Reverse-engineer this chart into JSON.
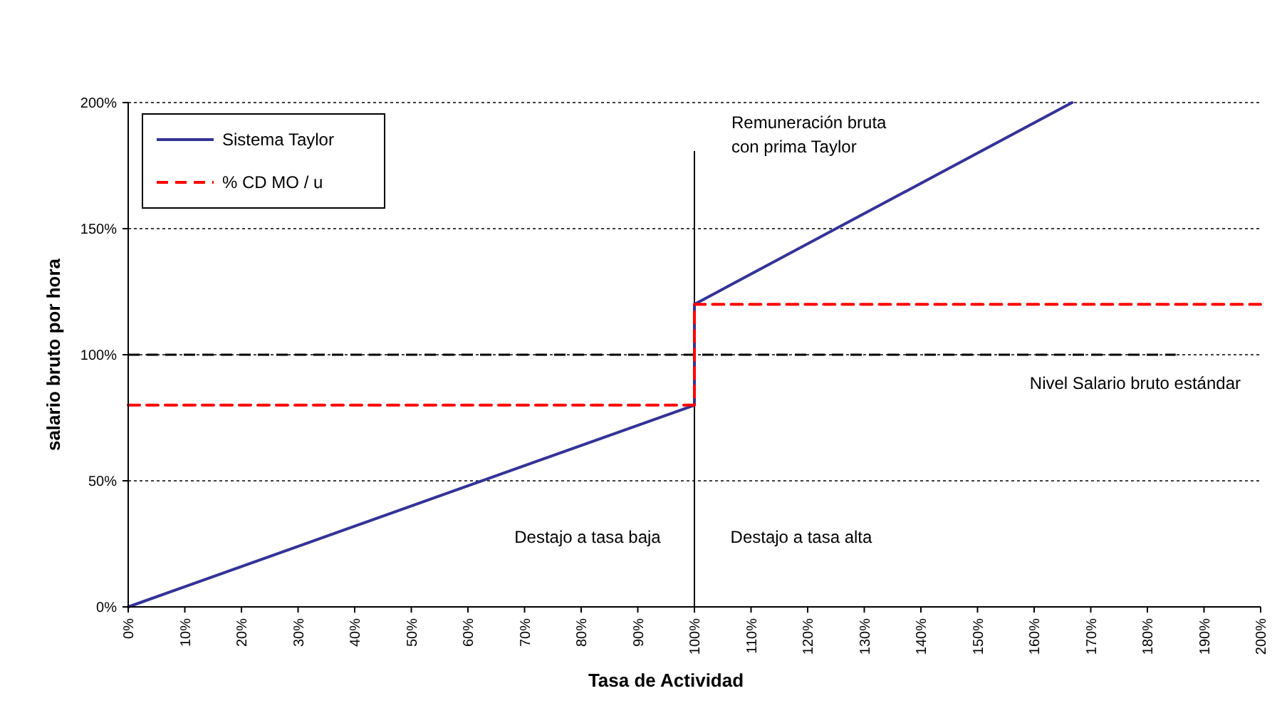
{
  "chart_data": {
    "type": "line",
    "xlabel": "Tasa de Actividad",
    "ylabel": "salario bruto por hora",
    "xlim": [
      0,
      200
    ],
    "ylim": [
      0,
      200
    ],
    "xticks": [
      {
        "value": 0,
        "label": "0%"
      },
      {
        "value": 10,
        "label": "10%"
      },
      {
        "value": 20,
        "label": "20%"
      },
      {
        "value": 30,
        "label": "30%"
      },
      {
        "value": 40,
        "label": "40%"
      },
      {
        "value": 50,
        "label": "50%"
      },
      {
        "value": 60,
        "label": "60%"
      },
      {
        "value": 70,
        "label": "70%"
      },
      {
        "value": 80,
        "label": "80%"
      },
      {
        "value": 90,
        "label": "90%"
      },
      {
        "value": 100,
        "label": "100%"
      },
      {
        "value": 110,
        "label": "110%"
      },
      {
        "value": 120,
        "label": "120%"
      },
      {
        "value": 130,
        "label": "130%"
      },
      {
        "value": 140,
        "label": "140%"
      },
      {
        "value": 150,
        "label": "150%"
      },
      {
        "value": 160,
        "label": "160%"
      },
      {
        "value": 170,
        "label": "170%"
      },
      {
        "value": 180,
        "label": "180%"
      },
      {
        "value": 190,
        "label": "190%"
      },
      {
        "value": 200,
        "label": "200%"
      }
    ],
    "yticks": [
      {
        "value": 0,
        "label": "0%"
      },
      {
        "value": 50,
        "label": "50%"
      },
      {
        "value": 100,
        "label": "100%"
      },
      {
        "value": 150,
        "label": "150%"
      },
      {
        "value": 200,
        "label": "200%"
      }
    ],
    "grid": "y",
    "legend": "top left",
    "marker": "none",
    "series": [
      {
        "name": "Sistema Taylor",
        "color": "#333399",
        "line_style": "solid",
        "x": [
          0,
          100,
          100,
          166.7
        ],
        "values": [
          0,
          80,
          120,
          200
        ]
      },
      {
        "name": "% CD MO / u",
        "color": "#ff0000",
        "line_style": "dashed",
        "x": [
          0,
          100,
          100,
          200
        ],
        "values": [
          80,
          80,
          120,
          120
        ]
      }
    ],
    "ref_lines": [
      {
        "axis": "y",
        "value": 100,
        "label": "Nivel Salario bruto estándar",
        "color": "#000000",
        "line_style": "dashed"
      },
      {
        "axis": "x",
        "value": 100,
        "label": "Remuneración bruta con prima Taylor",
        "color": "#000000",
        "line_style": "solid"
      }
    ],
    "annotations": [
      "Destajo a tasa baja",
      "Destajo a tasa alta"
    ]
  }
}
